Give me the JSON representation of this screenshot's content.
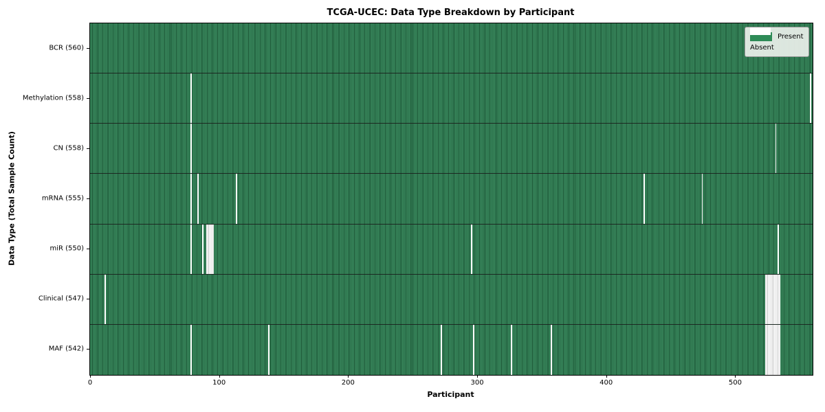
{
  "title": "TCGA-UCEC: Data Type Breakdown by Participant",
  "xlabel": "Participant",
  "ylabel": "Data Type (Total Sample Count)",
  "legend": {
    "present_label": "Present",
    "absent_label": "Absent"
  },
  "colors": {
    "present_green": "#2e8b57",
    "present_green_dark": "#1b5334",
    "absent_white": "#ffffff",
    "legend_bg": "#ebf0ec"
  },
  "x_ticks": [
    0,
    100,
    200,
    300,
    400,
    500
  ],
  "chart_data": {
    "type": "heatmap",
    "title": "TCGA-UCEC: Data Type Breakdown by Participant",
    "xlabel": "Participant",
    "ylabel": "Data Type (Total Sample Count)",
    "x_range": [
      0,
      560
    ],
    "x_tick_values": [
      0,
      100,
      200,
      300,
      400,
      500
    ],
    "legend_entries": [
      "Present",
      "Absent"
    ],
    "legend_position": "upper right",
    "cell_states": [
      "present",
      "absent"
    ],
    "n_participants": 560,
    "rows": [
      {
        "label": "BCR (560)",
        "data_type": "BCR",
        "total_sample_count": 560,
        "absent_participants": []
      },
      {
        "label": "Methylation (558)",
        "data_type": "Methylation",
        "total_sample_count": 558,
        "absent_participants": [
          78,
          558
        ]
      },
      {
        "label": "CN (558)",
        "data_type": "CN",
        "total_sample_count": 558,
        "absent_participants": [
          78,
          531
        ]
      },
      {
        "label": "mRNA (555)",
        "data_type": "mRNA",
        "total_sample_count": 555,
        "absent_participants": [
          78,
          83,
          113,
          429,
          474
        ]
      },
      {
        "label": "miR (550)",
        "data_type": "miR",
        "total_sample_count": 550,
        "absent_participants": [
          78,
          87,
          90,
          91,
          92,
          93,
          94,
          95,
          295,
          533
        ]
      },
      {
        "label": "Clinical (547)",
        "data_type": "Clinical",
        "total_sample_count": 547,
        "absent_participants": [
          11,
          523,
          524,
          525,
          526,
          527,
          528,
          529,
          530,
          531,
          532,
          533,
          534
        ]
      },
      {
        "label": "MAF (542)",
        "data_type": "MAF",
        "total_sample_count": 542,
        "absent_participants": [
          78,
          138,
          272,
          297,
          326,
          357,
          523,
          524,
          525,
          526,
          527,
          528,
          529,
          530,
          531,
          532,
          533,
          534
        ]
      }
    ]
  }
}
